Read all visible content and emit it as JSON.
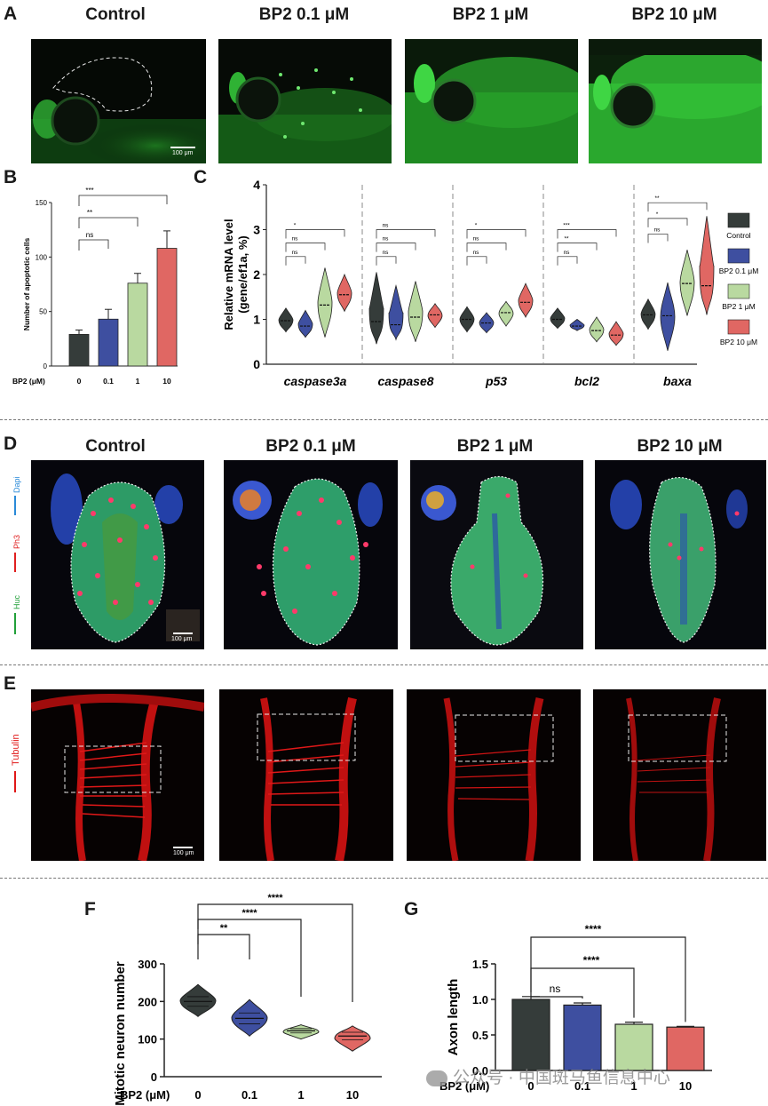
{
  "panel_labels": {
    "A": "A",
    "B": "B",
    "C": "C",
    "D": "D",
    "E": "E",
    "F": "F",
    "G": "G"
  },
  "column_titles": [
    "Control",
    "BP2 0.1 μM",
    "BP2 1 μM",
    "BP2 10 μM"
  ],
  "scale_bar_text": "100 μm",
  "channel_labels": {
    "dapi": "Dapi",
    "ph3": "Ph3",
    "huc": "Huc",
    "tubulin": "Tubulin"
  },
  "colors": {
    "control": "#353c3a",
    "bp2_01": "#3e4fa0",
    "bp2_1": "#b9d9a0",
    "bp2_10": "#e06763",
    "fluor_green": "#36c43b",
    "tubulin_red": "#e01818",
    "dapi_blue": "#2a8ad8",
    "ph3_red": "#e02020",
    "huc_green": "#22a03a"
  },
  "watermark": "公众号 · 中国斑马鱼信息中心",
  "chart_data": [
    {
      "id": "B",
      "type": "bar",
      "ylabel": "Number of apoptotic cells",
      "xlabel": "BP2 (μM)",
      "categories": [
        "0",
        "0.1",
        "1",
        "10"
      ],
      "values": [
        29,
        43,
        76,
        108
      ],
      "errors": [
        4,
        9,
        9,
        16
      ],
      "ylim": [
        0,
        150
      ],
      "yticks": [
        "0",
        "50",
        "100",
        "150"
      ],
      "significance": [
        {
          "from": 0,
          "to": 1,
          "label": "ns"
        },
        {
          "from": 0,
          "to": 2,
          "label": "**"
        },
        {
          "from": 0,
          "to": 3,
          "label": "***"
        }
      ]
    },
    {
      "id": "C",
      "type": "violin",
      "ylabel_line1": "Relative mRNA level",
      "ylabel_line2": "(gene/ef1a, %)",
      "ylim": [
        0,
        4
      ],
      "yticks": [
        "0",
        "1",
        "2",
        "3",
        "4"
      ],
      "genes": [
        "caspase3a",
        "caspase8",
        "p53",
        "bcl2",
        "baxa"
      ],
      "series": [
        "Control",
        "BP2 0.1 μM",
        "BP2 1 μM",
        "BP2 10 μM"
      ],
      "medians": [
        [
          0.97,
          0.85,
          1.32,
          1.55
        ],
        [
          0.95,
          0.88,
          1.05,
          1.1
        ],
        [
          1.0,
          0.92,
          1.15,
          1.38
        ],
        [
          1.0,
          0.85,
          0.75,
          0.65
        ],
        [
          1.1,
          1.08,
          1.8,
          1.75
        ]
      ],
      "ranges": [
        [
          [
            0.72,
            1.25
          ],
          [
            0.6,
            1.2
          ],
          [
            0.6,
            2.15
          ],
          [
            1.18,
            2.0
          ]
        ],
        [
          [
            0.45,
            2.05
          ],
          [
            0.55,
            1.75
          ],
          [
            0.5,
            1.85
          ],
          [
            0.82,
            1.35
          ]
        ],
        [
          [
            0.72,
            1.28
          ],
          [
            0.7,
            1.15
          ],
          [
            0.85,
            1.4
          ],
          [
            1.05,
            1.8
          ]
        ],
        [
          [
            0.8,
            1.25
          ],
          [
            0.75,
            1.0
          ],
          [
            0.5,
            1.05
          ],
          [
            0.42,
            0.95
          ]
        ],
        [
          [
            0.78,
            1.45
          ],
          [
            0.3,
            1.82
          ],
          [
            1.08,
            2.55
          ],
          [
            1.1,
            3.3
          ]
        ]
      ],
      "significance": [
        [
          "ns",
          "ns",
          "*"
        ],
        [
          "ns",
          "ns",
          "ns"
        ],
        [
          "ns",
          "ns",
          "*"
        ],
        [
          "ns",
          "**",
          "***"
        ],
        [
          "ns",
          "*",
          "**"
        ]
      ],
      "legend": [
        "Control",
        "BP2 0.1 μM",
        "BP2 1 μM",
        "BP2 10 μM"
      ]
    },
    {
      "id": "F",
      "type": "violin",
      "ylabel": "Mitotic neuron number",
      "xlabel": "BP2 (μM)",
      "categories": [
        "0",
        "0.1",
        "1",
        "10"
      ],
      "medians": [
        200,
        155,
        122,
        108
      ],
      "ranges": [
        [
          160,
          245
        ],
        [
          108,
          205
        ],
        [
          100,
          138
        ],
        [
          68,
          135
        ]
      ],
      "ylim": [
        0,
        300
      ],
      "yticks": [
        "0",
        "100",
        "200",
        "300"
      ],
      "significance": [
        {
          "from": 0,
          "to": 1,
          "label": "**"
        },
        {
          "from": 0,
          "to": 2,
          "label": "****"
        },
        {
          "from": 0,
          "to": 3,
          "label": "****"
        }
      ]
    },
    {
      "id": "G",
      "type": "bar",
      "ylabel": "Axon length",
      "xlabel": "BP2 (μM)",
      "categories": [
        "0",
        "0.1",
        "1",
        "10"
      ],
      "values": [
        1.0,
        0.92,
        0.65,
        0.61
      ],
      "errors": [
        0.04,
        0.03,
        0.03,
        0.01
      ],
      "ylim": [
        0,
        1.5
      ],
      "yticks": [
        "0.0",
        "0.5",
        "1.0",
        "1.5"
      ],
      "significance": [
        {
          "from": 0,
          "to": 1,
          "label": "ns"
        },
        {
          "from": 0,
          "to": 2,
          "label": "****"
        },
        {
          "from": 0,
          "to": 3,
          "label": "****"
        }
      ]
    }
  ]
}
